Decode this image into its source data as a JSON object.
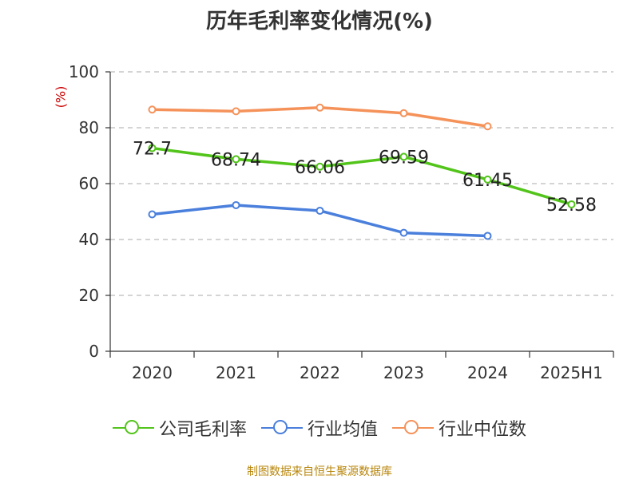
{
  "chart_data": {
    "type": "line",
    "title": "历年毛利率变化情况(%)",
    "ylabel": "(%)",
    "ylim": [
      0,
      100
    ],
    "yticks": [
      0,
      20,
      40,
      60,
      80,
      100
    ],
    "categories": [
      "2020",
      "2021",
      "2022",
      "2023",
      "2024",
      "2025H1"
    ],
    "series": [
      {
        "name": "公司毛利率",
        "color": "#52c41a",
        "values": [
          72.7,
          68.74,
          66.06,
          69.59,
          61.45,
          52.58
        ],
        "labels": [
          "72.7",
          "68.74",
          "66.06",
          "69.59",
          "61.45",
          "52.58"
        ]
      },
      {
        "name": "行业均值",
        "color": "#4a7fdc",
        "values": [
          49.0,
          52.3,
          50.3,
          42.4,
          41.3,
          null
        ]
      },
      {
        "name": "行业中位数",
        "color": "#f5925a",
        "values": [
          86.5,
          85.9,
          87.2,
          85.2,
          80.5,
          null
        ]
      }
    ],
    "grid": true,
    "legend_position": "bottom"
  },
  "footer": {
    "source": "制图数据来自恒生聚源数据库"
  }
}
